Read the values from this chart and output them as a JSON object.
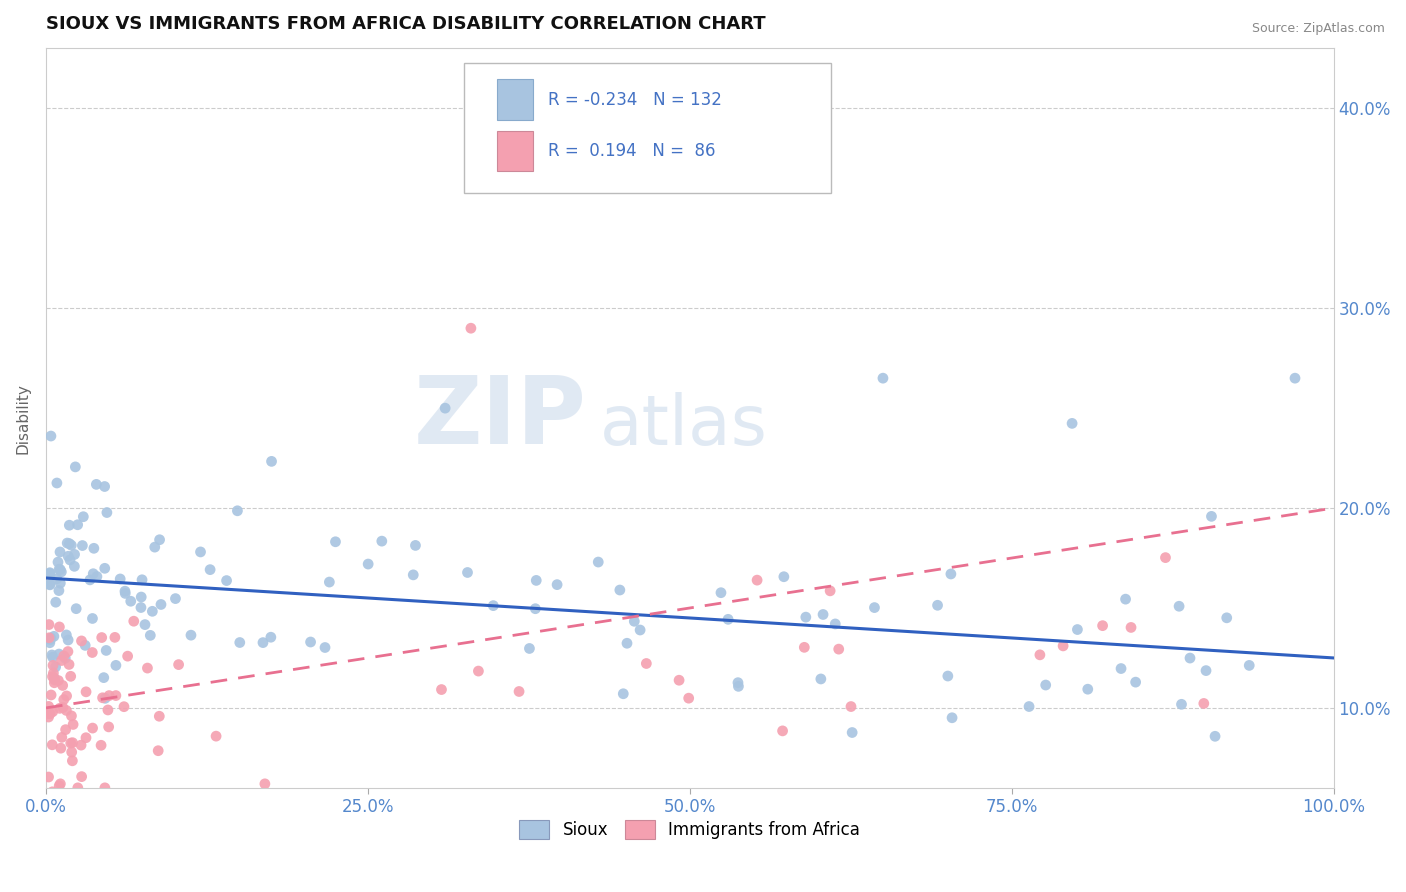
{
  "title": "SIOUX VS IMMIGRANTS FROM AFRICA DISABILITY CORRELATION CHART",
  "source": "Source: ZipAtlas.com",
  "ylabel": "Disability",
  "xlim": [
    0,
    100
  ],
  "ylim": [
    6,
    43
  ],
  "yticks": [
    10.0,
    20.0,
    30.0,
    40.0
  ],
  "xticks": [
    0,
    25,
    50,
    75,
    100
  ],
  "sioux_R": -0.234,
  "sioux_N": 132,
  "africa_R": 0.194,
  "africa_N": 86,
  "sioux_color": "#a8c4e0",
  "africa_color": "#f4a0b0",
  "sioux_line_color": "#3060c0",
  "africa_line_color": "#e87090",
  "watermark_zip": "ZIP",
  "watermark_atlas": "atlas",
  "watermark_color_zip": "#c8d8ea",
  "watermark_color_atlas": "#c8d8ea",
  "background_color": "#ffffff",
  "grid_color": "#cccccc",
  "title_fontsize": 13,
  "tick_color": "#5588cc"
}
